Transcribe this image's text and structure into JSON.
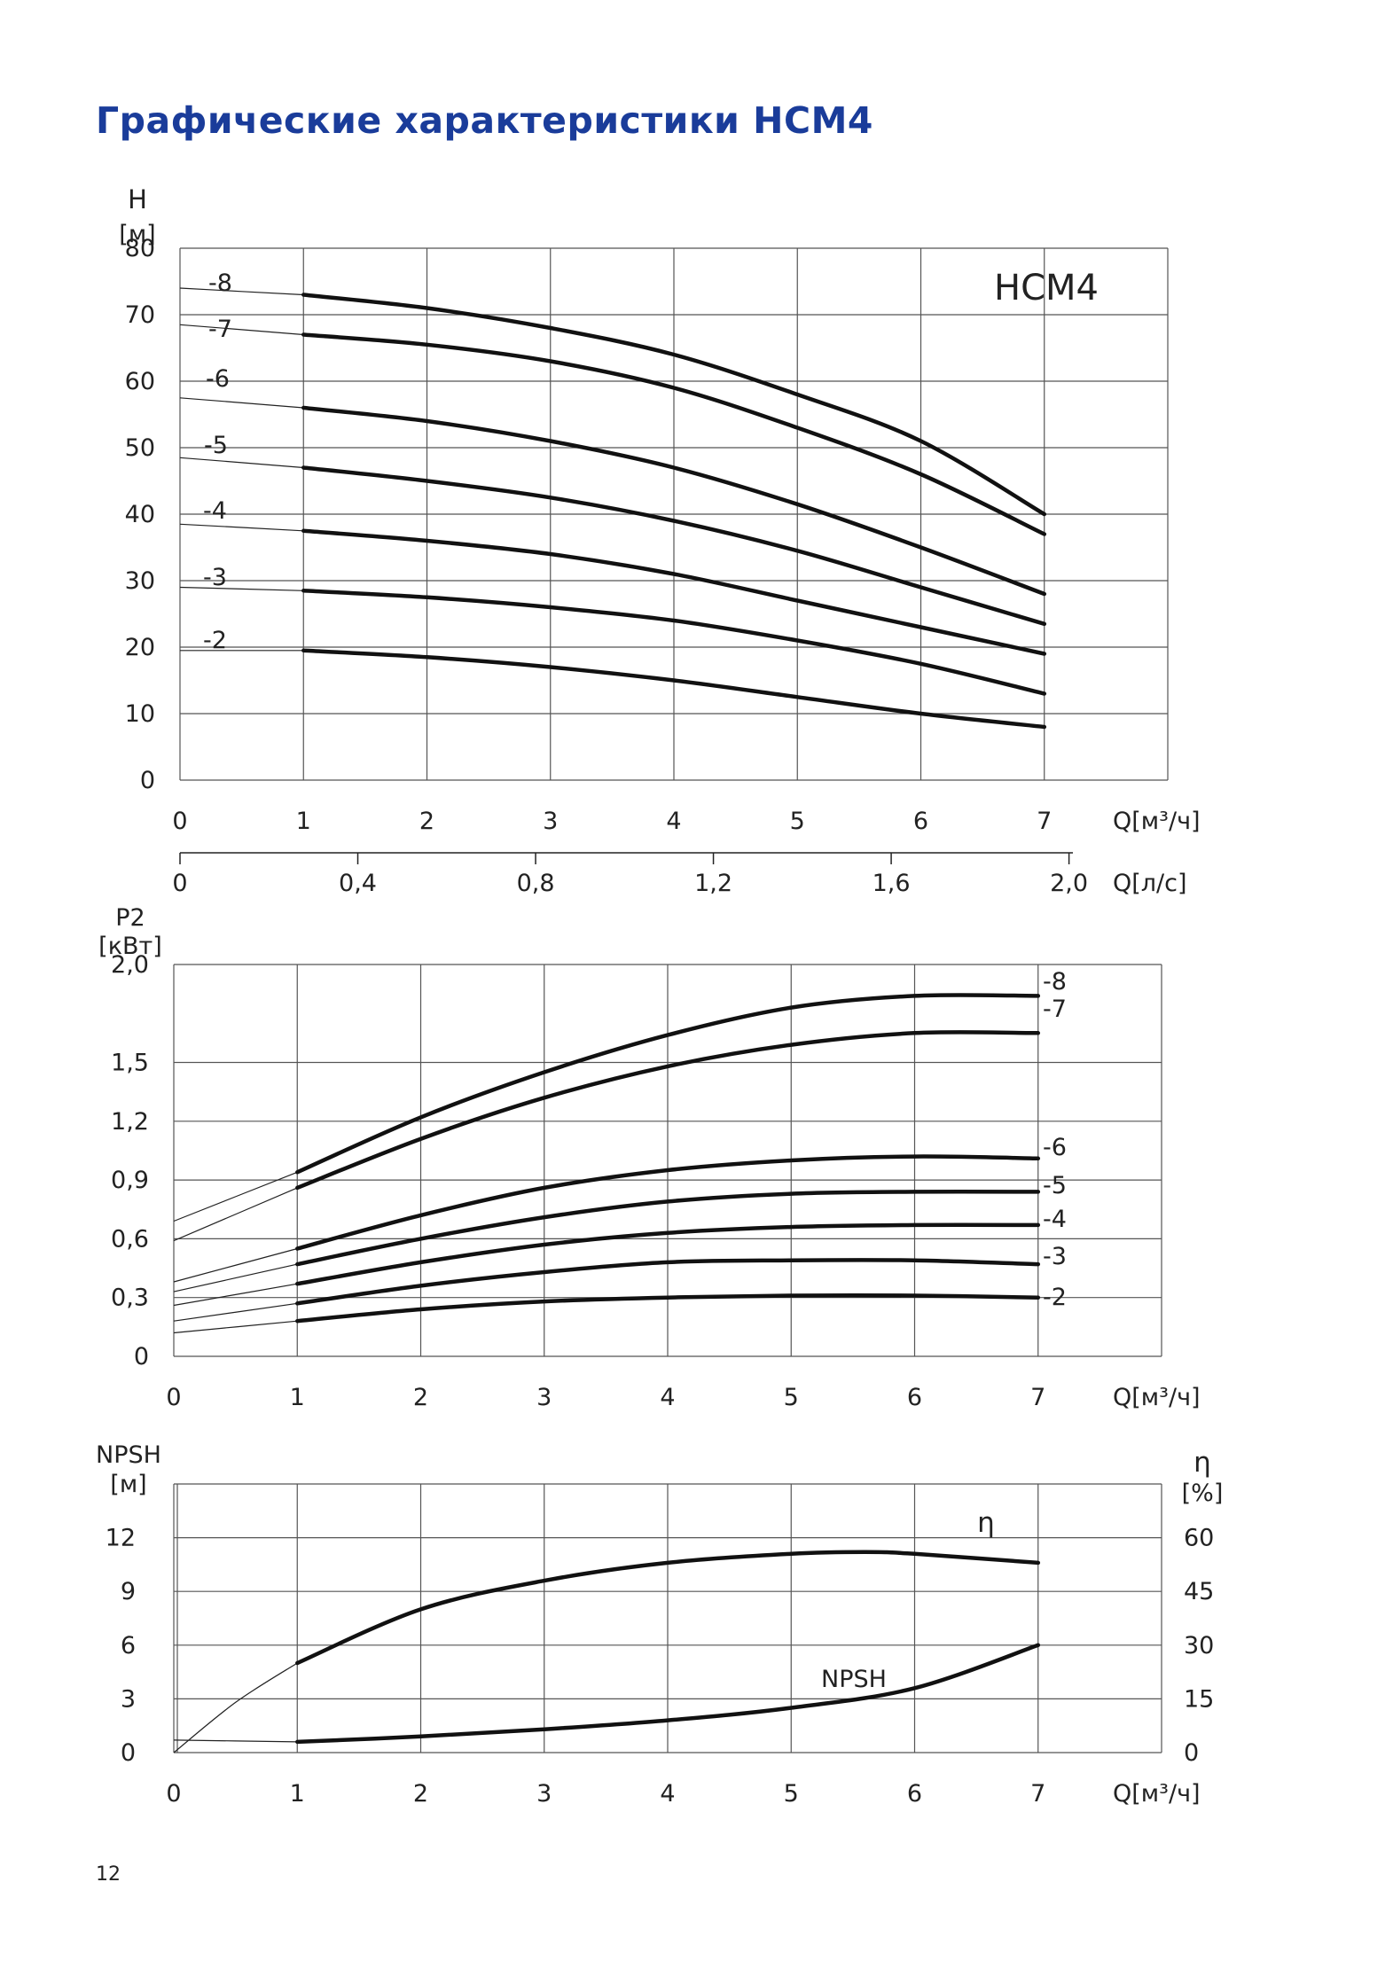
{
  "page": {
    "title": "Графические характеристики HCM4",
    "page_number": "12"
  },
  "colors": {
    "title": "#1a3c9a",
    "curve": "#111111",
    "grid": "#555555"
  },
  "chart_data": [
    {
      "type": "line",
      "name": "head",
      "model_label": "HCM4",
      "ylabel": [
        "H",
        "[м]"
      ],
      "xlabel": "Q[м³/ч]",
      "xlim": [
        0,
        8
      ],
      "ylim": [
        0,
        80
      ],
      "xticks": [
        "0",
        "1",
        "2",
        "3",
        "4",
        "5",
        "6",
        "7"
      ],
      "yticks": [
        "0",
        "10",
        "20",
        "30",
        "40",
        "50",
        "60",
        "70",
        "80"
      ],
      "secondary_axis": {
        "xlabel": "Q[л/с]",
        "ticks": [
          {
            "v": 0,
            "label": "0"
          },
          {
            "v": 0.4,
            "label": "0,4"
          },
          {
            "v": 0.8,
            "label": "0,8"
          },
          {
            "v": 1.2,
            "label": "1,2"
          },
          {
            "v": 1.6,
            "label": "1,6"
          },
          {
            "v": 2.0,
            "label": "2,0"
          }
        ]
      },
      "series": [
        {
          "name": "-8",
          "ext": [
            [
              0,
              74
            ],
            [
              1,
              73
            ]
          ],
          "points": [
            [
              1,
              73
            ],
            [
              2,
              71
            ],
            [
              3,
              68
            ],
            [
              4,
              64
            ],
            [
              5,
              58
            ],
            [
              6,
              51
            ],
            [
              7,
              40
            ]
          ]
        },
        {
          "name": "-7",
          "ext": [
            [
              0,
              68.5
            ],
            [
              1,
              67
            ]
          ],
          "points": [
            [
              1,
              67
            ],
            [
              2,
              65.5
            ],
            [
              3,
              63
            ],
            [
              4,
              59
            ],
            [
              5,
              53
            ],
            [
              6,
              46
            ],
            [
              7,
              37
            ]
          ]
        },
        {
          "name": "-6",
          "ext": [
            [
              0,
              57.5
            ],
            [
              1,
              56
            ]
          ],
          "points": [
            [
              1,
              56
            ],
            [
              2,
              54
            ],
            [
              3,
              51
            ],
            [
              4,
              47
            ],
            [
              5,
              41.5
            ],
            [
              6,
              35
            ],
            [
              7,
              28
            ]
          ]
        },
        {
          "name": "-5",
          "ext": [
            [
              0,
              48.5
            ],
            [
              1,
              47
            ]
          ],
          "points": [
            [
              1,
              47
            ],
            [
              2,
              45
            ],
            [
              3,
              42.5
            ],
            [
              4,
              39
            ],
            [
              5,
              34.5
            ],
            [
              6,
              29
            ],
            [
              7,
              23.5
            ]
          ]
        },
        {
          "name": "-4",
          "ext": [
            [
              0,
              38.5
            ],
            [
              1,
              37.5
            ]
          ],
          "points": [
            [
              1,
              37.5
            ],
            [
              2,
              36
            ],
            [
              3,
              34
            ],
            [
              4,
              31
            ],
            [
              5,
              27
            ],
            [
              6,
              23
            ],
            [
              7,
              19
            ]
          ]
        },
        {
          "name": "-3",
          "ext": [
            [
              0,
              29
            ],
            [
              1,
              28.5
            ]
          ],
          "points": [
            [
              1,
              28.5
            ],
            [
              2,
              27.5
            ],
            [
              3,
              26
            ],
            [
              4,
              24
            ],
            [
              5,
              21
            ],
            [
              6,
              17.5
            ],
            [
              7,
              13
            ]
          ]
        },
        {
          "name": "-2",
          "ext": [
            [
              0,
              19.5
            ],
            [
              1,
              19.5
            ]
          ],
          "points": [
            [
              1,
              19.5
            ],
            [
              2,
              18.5
            ],
            [
              3,
              17
            ],
            [
              4,
              15
            ],
            [
              5,
              12.5
            ],
            [
              6,
              10
            ],
            [
              7,
              8
            ]
          ]
        }
      ]
    },
    {
      "type": "line",
      "name": "power",
      "ylabel": [
        "P2",
        "[кВт]"
      ],
      "xlabel": "Q[м³/ч]",
      "xlim": [
        0,
        8
      ],
      "ylim": [
        0,
        2.0
      ],
      "xticks": [
        "0",
        "1",
        "2",
        "3",
        "4",
        "5",
        "6",
        "7"
      ],
      "yticks": [
        {
          "v": 0,
          "label": "0"
        },
        {
          "v": 0.3,
          "label": "0,3"
        },
        {
          "v": 0.6,
          "label": "0,6"
        },
        {
          "v": 0.9,
          "label": "0,9"
        },
        {
          "v": 1.2,
          "label": "1,2"
        },
        {
          "v": 1.5,
          "label": "1,5"
        },
        {
          "v": 2.0,
          "label": "2,0"
        }
      ],
      "series": [
        {
          "name": "-8",
          "ext": [
            [
              0,
              0.69
            ],
            [
              1,
              0.94
            ]
          ],
          "points": [
            [
              1,
              0.94
            ],
            [
              2,
              1.22
            ],
            [
              3,
              1.45
            ],
            [
              4,
              1.64
            ],
            [
              5,
              1.78
            ],
            [
              6,
              1.84
            ],
            [
              7,
              1.84
            ]
          ]
        },
        {
          "name": "-7",
          "ext": [
            [
              0,
              0.59
            ],
            [
              1,
              0.86
            ]
          ],
          "points": [
            [
              1,
              0.86
            ],
            [
              2,
              1.11
            ],
            [
              3,
              1.32
            ],
            [
              4,
              1.48
            ],
            [
              5,
              1.59
            ],
            [
              6,
              1.65
            ],
            [
              7,
              1.65
            ]
          ]
        },
        {
          "name": "-6",
          "ext": [
            [
              0,
              0.38
            ],
            [
              1,
              0.55
            ]
          ],
          "points": [
            [
              1,
              0.55
            ],
            [
              2,
              0.72
            ],
            [
              3,
              0.86
            ],
            [
              4,
              0.95
            ],
            [
              5,
              1.0
            ],
            [
              6,
              1.02
            ],
            [
              7,
              1.01
            ]
          ]
        },
        {
          "name": "-5",
          "ext": [
            [
              0,
              0.33
            ],
            [
              1,
              0.47
            ]
          ],
          "points": [
            [
              1,
              0.47
            ],
            [
              2,
              0.6
            ],
            [
              3,
              0.71
            ],
            [
              4,
              0.79
            ],
            [
              5,
              0.83
            ],
            [
              6,
              0.84
            ],
            [
              7,
              0.84
            ]
          ]
        },
        {
          "name": "-4",
          "ext": [
            [
              0,
              0.26
            ],
            [
              1,
              0.37
            ]
          ],
          "points": [
            [
              1,
              0.37
            ],
            [
              2,
              0.48
            ],
            [
              3,
              0.57
            ],
            [
              4,
              0.63
            ],
            [
              5,
              0.66
            ],
            [
              6,
              0.67
            ],
            [
              7,
              0.67
            ]
          ]
        },
        {
          "name": "-3",
          "ext": [
            [
              0,
              0.18
            ],
            [
              1,
              0.27
            ]
          ],
          "points": [
            [
              1,
              0.27
            ],
            [
              2,
              0.36
            ],
            [
              3,
              0.43
            ],
            [
              4,
              0.48
            ],
            [
              5,
              0.49
            ],
            [
              6,
              0.49
            ],
            [
              7,
              0.47
            ]
          ]
        },
        {
          "name": "-2",
          "ext": [
            [
              0,
              0.12
            ],
            [
              1,
              0.18
            ]
          ],
          "points": [
            [
              1,
              0.18
            ],
            [
              2,
              0.24
            ],
            [
              3,
              0.28
            ],
            [
              4,
              0.3
            ],
            [
              5,
              0.31
            ],
            [
              6,
              0.31
            ],
            [
              7,
              0.3
            ]
          ]
        }
      ]
    },
    {
      "type": "line",
      "name": "npsh-efficiency",
      "ylabel": [
        "NPSH",
        "[м]"
      ],
      "y2label": [
        "η",
        "[%]"
      ],
      "xlabel": "Q[м³/ч]",
      "xlim": [
        0,
        8
      ],
      "ylim": [
        0,
        15
      ],
      "y2lim": [
        0,
        75
      ],
      "xticks": [
        "0",
        "1",
        "2",
        "3",
        "4",
        "5",
        "6",
        "7"
      ],
      "yticks": [
        "0",
        "3",
        "6",
        "9",
        "12"
      ],
      "y2ticks": [
        "0",
        "15",
        "30",
        "45",
        "60"
      ],
      "series": [
        {
          "name": "η",
          "axis": "right",
          "ext": [
            [
              0,
              0
            ],
            [
              0.5,
              14
            ],
            [
              1,
              25
            ]
          ],
          "points": [
            [
              1,
              25
            ],
            [
              2,
              40
            ],
            [
              3,
              48
            ],
            [
              4,
              53
            ],
            [
              5,
              55.5
            ],
            [
              5.6,
              56
            ],
            [
              6,
              55.5
            ],
            [
              7,
              53
            ]
          ]
        },
        {
          "name": "NPSH",
          "axis": "left",
          "ext": [
            [
              0,
              0.7
            ],
            [
              1,
              0.6
            ]
          ],
          "points": [
            [
              1,
              0.6
            ],
            [
              2,
              0.9
            ],
            [
              3,
              1.3
            ],
            [
              4,
              1.8
            ],
            [
              5,
              2.5
            ],
            [
              6,
              3.6
            ],
            [
              7,
              6.0
            ]
          ]
        }
      ]
    }
  ]
}
